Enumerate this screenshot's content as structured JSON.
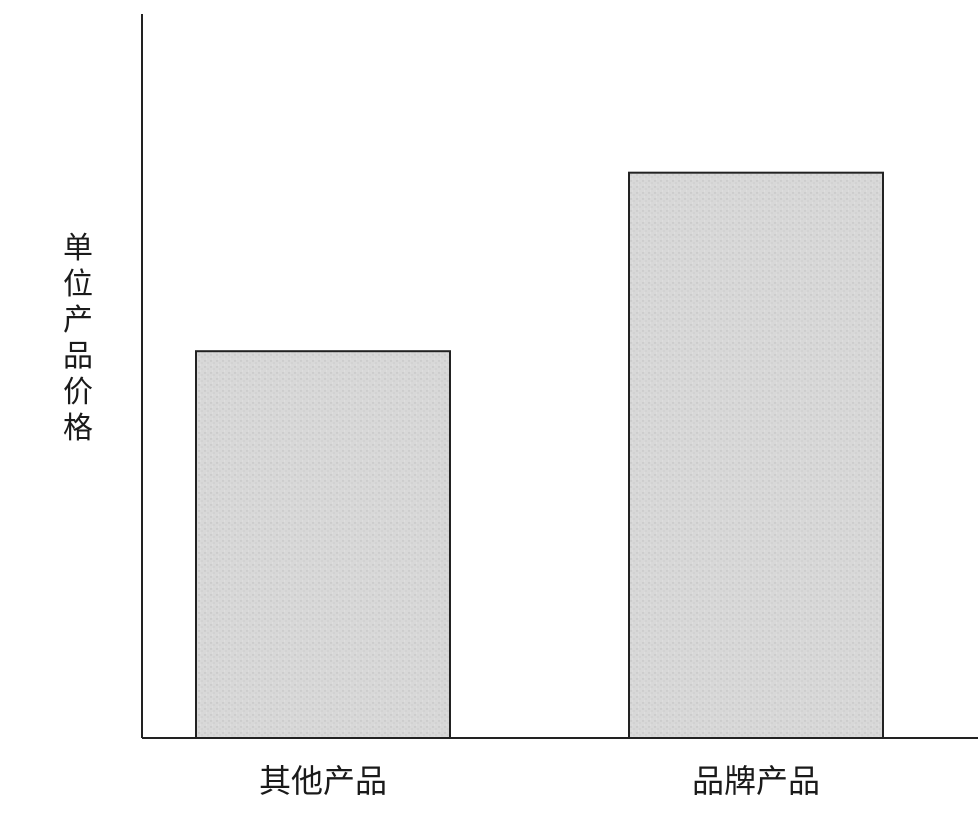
{
  "chart_data": {
    "type": "bar",
    "categories": [
      "其他产品",
      "品牌产品"
    ],
    "values": [
      3.9,
      5.7
    ],
    "ylabel": "单位产品价格",
    "xlabel": "",
    "title": "",
    "ylim": [
      0,
      7.3
    ],
    "grid": false,
    "legend": "none",
    "bar_fill": "#d6d6d6",
    "bar_stroke": "#222222",
    "axis_color": "#222222"
  }
}
